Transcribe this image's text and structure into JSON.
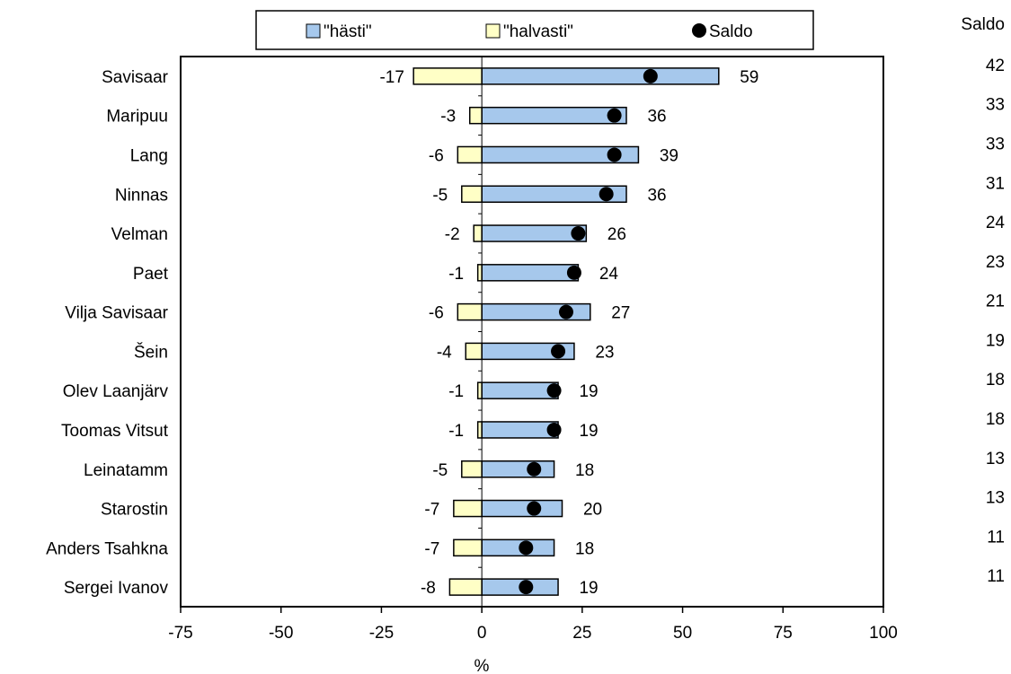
{
  "chart_data": {
    "type": "bar",
    "orientation": "horizontal",
    "stacked": false,
    "categories": [
      "Savisaar",
      "Maripuu",
      "Lang",
      "Ninnas",
      "Velman",
      "Paet",
      "Vilja Savisaar",
      "Šein",
      "Olev Laanjärv",
      "Toomas Vitsut",
      "Leinatamm",
      "Starostin",
      "Anders Tsahkna",
      "Sergei Ivanov"
    ],
    "series": [
      {
        "name": "\"hästi\"",
        "type": "bar",
        "color": "#a6c8ec",
        "values": [
          59,
          36,
          39,
          36,
          26,
          24,
          27,
          23,
          19,
          19,
          18,
          20,
          18,
          19
        ]
      },
      {
        "name": "\"halvasti\"",
        "type": "bar",
        "color": "#ffffc6",
        "values": [
          -17,
          -3,
          -6,
          -5,
          -2,
          -1,
          -6,
          -4,
          -1,
          -1,
          -5,
          -7,
          -7,
          -8
        ]
      },
      {
        "name": "Saldo",
        "type": "marker",
        "color": "#000000",
        "values": [
          42,
          33,
          33,
          31,
          24,
          23,
          21,
          19,
          18,
          18,
          13,
          13,
          11,
          11
        ]
      }
    ],
    "saldo_column_title": "Saldo",
    "xlabel": "%",
    "ylabel": "",
    "xlim": [
      -75,
      100
    ],
    "xticks": [
      -75,
      -50,
      -25,
      0,
      25,
      50,
      75,
      100
    ],
    "grid": false,
    "legend_position": "top"
  }
}
